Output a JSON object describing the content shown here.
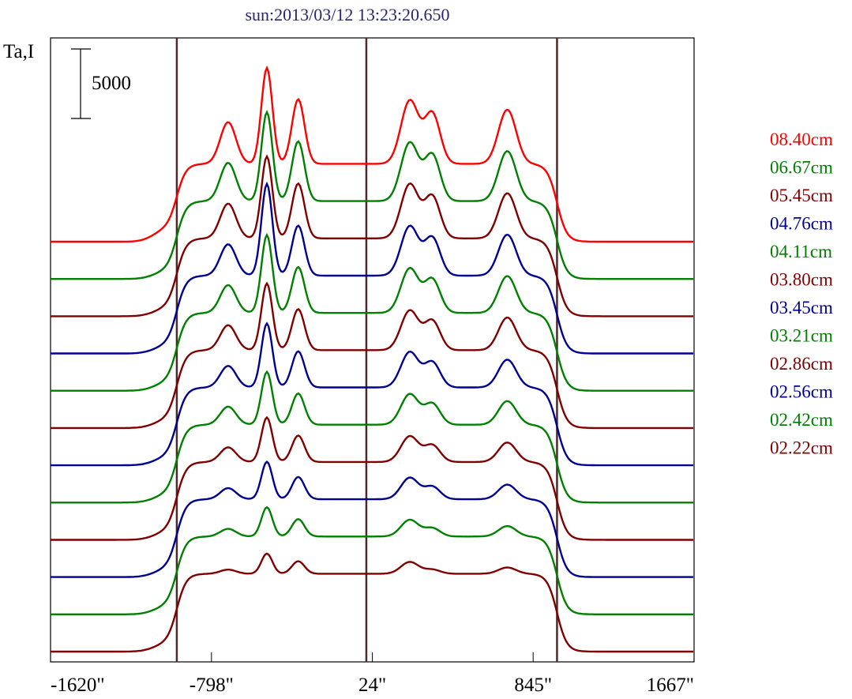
{
  "chart_data": {
    "type": "line",
    "title": "sun:2013/03/12 13:23:20.650",
    "ylabel": "Ta,I",
    "xlabel": "",
    "xlim": [
      -1620,
      1667
    ],
    "x_ticks": [
      -1620,
      -798,
      24,
      845,
      1667
    ],
    "x_tick_labels": [
      "-1620\"",
      "-798\"",
      "24\"",
      "845\"",
      "1667\""
    ],
    "scale_bar": {
      "value": 5000,
      "label": "5000"
    },
    "vertical_markers": [
      -975,
      -7,
      967
    ],
    "marker_color": "#4a2a2a",
    "disk": {
      "left_limb": -975,
      "right_limb": 967,
      "level": 5600,
      "edge_width": 25
    },
    "source_positions": [
      -713,
      -515,
      -355,
      215,
      330,
      713
    ],
    "source_widths": [
      40,
      28,
      32,
      45,
      40,
      45
    ],
    "grid": false,
    "legend_placement": "right",
    "series": [
      {
        "name": "08.40cm",
        "color": "#ff0000",
        "amplitudes": [
          3000,
          6900,
          4650,
          4550,
          3600,
          3900
        ]
      },
      {
        "name": "06.67cm",
        "color": "#008000",
        "amplitudes": [
          2750,
          6400,
          4300,
          4200,
          3300,
          3600
        ]
      },
      {
        "name": "05.45cm",
        "color": "#800000",
        "amplitudes": [
          2500,
          5900,
          3950,
          3900,
          3000,
          3250
        ]
      },
      {
        "name": "04.76cm",
        "color": "#000090",
        "amplitudes": [
          2250,
          6600,
          3600,
          3550,
          2700,
          2950
        ]
      },
      {
        "name": "04.11cm",
        "color": "#008000",
        "amplitudes": [
          2000,
          5600,
          3300,
          3200,
          2400,
          2650
        ]
      },
      {
        "name": "03.80cm",
        "color": "#800000",
        "amplitudes": [
          1800,
          4800,
          2950,
          2850,
          2100,
          2350
        ]
      },
      {
        "name": "03.45cm",
        "color": "#000090",
        "amplitudes": [
          1550,
          4600,
          2600,
          2550,
          1800,
          2000
        ]
      },
      {
        "name": "03.21cm",
        "color": "#008000",
        "amplitudes": [
          1300,
          3800,
          2250,
          2200,
          1500,
          1700
        ]
      },
      {
        "name": "02.86cm",
        "color": "#800000",
        "amplitudes": [
          1050,
          3200,
          1900,
          1850,
          1200,
          1400
        ]
      },
      {
        "name": "02.56cm",
        "color": "#000090",
        "amplitudes": [
          800,
          2700,
          1600,
          1550,
          900,
          1050
        ]
      },
      {
        "name": "02.42cm",
        "color": "#008000",
        "amplitudes": [
          550,
          2100,
          1250,
          1200,
          600,
          750
        ]
      },
      {
        "name": "02.22cm",
        "color": "#800000",
        "amplitudes": [
          300,
          1450,
          900,
          850,
          300,
          450
        ]
      }
    ]
  }
}
